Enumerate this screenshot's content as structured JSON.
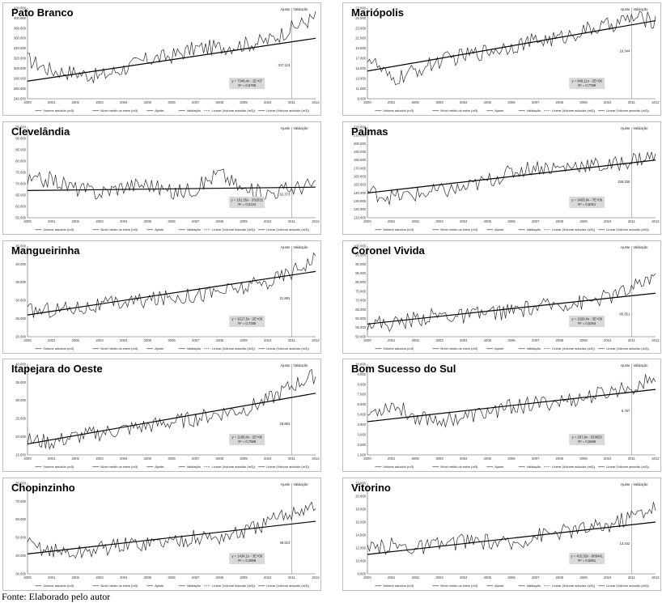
{
  "source_note": "Fonte: Elaborado pelo autor",
  "legend": {
    "volume": "Volume aduzido (m3)",
    "nivel": "Nível médio do estre (m3)",
    "ajuste": "Ajuste",
    "validacao": "Validação",
    "linear_ajuste": "Linear (Volume aduzido (m3))",
    "linear_validacao": "Linear (Volume aduzido (m3))"
  },
  "split_labels": {
    "ajuste": "Ajuste",
    "validacao": "Validação"
  },
  "colors": {
    "series": "#2b2b2b",
    "trend": "#000000",
    "split": "#8c8c8c",
    "box": "#d9d9d9"
  },
  "chart_data": [
    {
      "type": "line",
      "title": "Pato Branco",
      "x": [
        "2000",
        "2001",
        "2002",
        "2003",
        "2004",
        "2005",
        "2006",
        "2007",
        "2008",
        "2009",
        "2010",
        "2011",
        "2012"
      ],
      "yticks": [
        "240.000",
        "260.000",
        "280.000",
        "300.000",
        "320.000",
        "340.000",
        "360.000",
        "380.000",
        "400.000",
        "420.000"
      ],
      "ylim": [
        240000,
        420000
      ],
      "trend_start": 275000,
      "trend_end": 360000,
      "series": [
        {
          "name": "Volume aduzido (m3)",
          "values": [
            318000,
            296000,
            292000,
            284000,
            300000,
            318000,
            325000,
            340000,
            342000,
            348000,
            355000,
            380000,
            402000
          ]
        }
      ],
      "equation": "y = 7340,4x - 1E+07",
      "r2": "R² = 0,5709",
      "split_value": "317.113"
    },
    {
      "type": "line",
      "title": "Mariópolis",
      "x": [
        "2000",
        "2001",
        "2002",
        "2003",
        "2004",
        "2005",
        "2006",
        "2007",
        "2008",
        "2009",
        "2010",
        "2011",
        "2012"
      ],
      "yticks": [
        "9.000",
        "11.000",
        "13.000",
        "15.000",
        "17.000",
        "19.000",
        "21.000",
        "23.000",
        "25.000",
        "27.000"
      ],
      "ylim": [
        9000,
        27000
      ],
      "trend_start": 14500,
      "trend_end": 24500,
      "series": [
        {
          "name": "Volume aduzido (m3)",
          "values": [
            17500,
            12500,
            14500,
            16500,
            17500,
            18500,
            19500,
            20500,
            21000,
            22500,
            23500,
            25000,
            24500
          ]
        }
      ],
      "equation": "y = 846,11x - 2E+06",
      "r2": "R² = 0,7789",
      "split_value": "19.344"
    },
    {
      "type": "line",
      "title": "Clevelândia",
      "x": [
        "2000",
        "2001",
        "2002",
        "2003",
        "2004",
        "2005",
        "2006",
        "2007",
        "2008",
        "2009",
        "2010",
        "2011",
        "2012"
      ],
      "yticks": [
        "55.000",
        "60.000",
        "65.000",
        "70.000",
        "75.000",
        "80.000",
        "85.000",
        "90.000",
        "95.000"
      ],
      "ylim": [
        55000,
        95000
      ],
      "trend_start": 67000,
      "trend_end": 68500,
      "series": [
        {
          "name": "Volume aduzido (m3)",
          "values": [
            71000,
            72000,
            68000,
            66000,
            69000,
            70000,
            66000,
            68000,
            75000,
            67000,
            66000,
            68000,
            70000
          ]
        }
      ],
      "equation": "y = 181,35x - 332532",
      "r2": "R² = 0,0134",
      "split_value": "62.373"
    },
    {
      "type": "line",
      "title": "Palmas",
      "x": [
        "2000",
        "2001",
        "2002",
        "2003",
        "2004",
        "2005",
        "2006",
        "2007",
        "2008",
        "2009",
        "2010",
        "2011",
        "2012"
      ],
      "yticks": [
        "110.000",
        "120.000",
        "130.000",
        "140.000",
        "150.000",
        "160.000",
        "170.000",
        "180.000",
        "190.000",
        "200.000",
        "210.000",
        "220.000"
      ],
      "ylim": [
        110000,
        220000
      ],
      "trend_start": 140000,
      "trend_end": 180000,
      "series": [
        {
          "name": "Volume aduzido (m3)",
          "values": [
            142000,
            135000,
            138000,
            142000,
            145000,
            155000,
            165000,
            172000,
            170000,
            175000,
            172000,
            180000,
            185000
          ]
        }
      ],
      "equation": "y = 3403,9x - 7E+06",
      "r2": "R² = 0,5051",
      "split_value": "159.335"
    },
    {
      "type": "line",
      "title": "Mangueirinha",
      "x": [
        "2000",
        "2001",
        "2002",
        "2003",
        "2004",
        "2005",
        "2006",
        "2007",
        "2008",
        "2009",
        "2010",
        "2011",
        "2012"
      ],
      "yticks": [
        "20.000",
        "25.000",
        "30.000",
        "35.000",
        "40.000",
        "45.000"
      ],
      "ylim": [
        20000,
        45000
      ],
      "trend_start": 26000,
      "trend_end": 38000,
      "series": [
        {
          "name": "Volume aduzido (m3)",
          "values": [
            27000,
            27500,
            28000,
            28500,
            29500,
            30000,
            31000,
            31500,
            32500,
            33500,
            35000,
            38000,
            42000
          ]
        }
      ],
      "equation": "y = 1017,5x - 2E+06",
      "r2": "R² = 0,7285",
      "split_value": "31.891"
    },
    {
      "type": "line",
      "title": "Coronel Vivida",
      "x": [
        "2000",
        "2001",
        "2002",
        "2003",
        "2004",
        "2005",
        "2006",
        "2007",
        "2008",
        "2009",
        "2010",
        "2011",
        "2012"
      ],
      "yticks": [
        "50.000",
        "55.000",
        "60.000",
        "65.000",
        "70.000",
        "75.000",
        "80.000",
        "85.000",
        "90.000",
        "95.000",
        "100.000"
      ],
      "ylim": [
        50000,
        100000
      ],
      "trend_start": 57000,
      "trend_end": 74000,
      "series": [
        {
          "name": "Volume aduzido (m3)",
          "values": [
            58000,
            57000,
            60000,
            62000,
            61000,
            63000,
            64000,
            66000,
            68000,
            69000,
            72000,
            76000,
            85000
          ]
        }
      ],
      "equation": "y = 1320,4x - 3E+06",
      "r2": "R² = 0,5264",
      "split_value": "65.651"
    },
    {
      "type": "line",
      "title": "Itapejara do Oeste",
      "x": [
        "2000",
        "2001",
        "2002",
        "2003",
        "2004",
        "2005",
        "2006",
        "2007",
        "2008",
        "2009",
        "2010",
        "2011",
        "2012"
      ],
      "yticks": [
        "15.000",
        "20.000",
        "25.000",
        "30.000",
        "35.000",
        "40.000"
      ],
      "ylim": [
        15000,
        40000
      ],
      "trend_start": 18000,
      "trend_end": 32000,
      "series": [
        {
          "name": "Volume aduzido (m3)",
          "values": [
            19000,
            18500,
            20000,
            21000,
            22000,
            23000,
            24000,
            25000,
            26500,
            27500,
            30000,
            34000,
            37000
          ]
        }
      ],
      "equation": "y = 1190,8x - 2E+06",
      "r2": "R² = 0,7589",
      "split_value": "25.863"
    },
    {
      "type": "line",
      "title": "Bom Sucesso do Sul",
      "x": [
        "2000",
        "2001",
        "2002",
        "2003",
        "2004",
        "2005",
        "2006",
        "2007",
        "2008",
        "2009",
        "2010",
        "2011",
        "2012"
      ],
      "yticks": [
        "1.000",
        "2.000",
        "3.000",
        "4.000",
        "5.000",
        "6.000",
        "7.000",
        "8.000",
        "9.000",
        "10.000"
      ],
      "ylim": [
        1000,
        10000
      ],
      "trend_start": 4300,
      "trend_end": 7500,
      "series": [
        {
          "name": "Volume aduzido (m3)",
          "values": [
            5000,
            6000,
            4800,
            4500,
            4700,
            5200,
            5800,
            6000,
            6300,
            6600,
            7200,
            7800,
            8500
          ]
        }
      ],
      "equation": "y = 267,6x - 533623",
      "r2": "R² = 0,5568",
      "split_value": "5.767"
    },
    {
      "type": "line",
      "title": "Chopinzinho",
      "x": [
        "2000",
        "2001",
        "2002",
        "2003",
        "2004",
        "2005",
        "2006",
        "2007",
        "2008",
        "2009",
        "2010",
        "2011",
        "2012"
      ],
      "yticks": [
        "30.000",
        "40.000",
        "50.000",
        "60.000",
        "70.000",
        "80.000"
      ],
      "ylim": [
        30000,
        80000
      ],
      "trend_start": 41000,
      "trend_end": 59000,
      "series": [
        {
          "name": "Volume aduzido (m3)",
          "values": [
            46000,
            43000,
            41000,
            44000,
            46000,
            47000,
            48000,
            50000,
            50000,
            53000,
            58000,
            64000,
            68000
          ]
        }
      ],
      "equation": "y = 1434,1x - 3E+06",
      "r2": "R² = 0,4898",
      "split_value": "48.913"
    },
    {
      "type": "line",
      "title": "Vitorino",
      "x": [
        "2000",
        "2001",
        "2002",
        "2003",
        "2004",
        "2005",
        "2006",
        "2007",
        "2008",
        "2009",
        "2010",
        "2011",
        "2012"
      ],
      "yticks": [
        "8.000",
        "10.000",
        "12.000",
        "14.000",
        "16.000",
        "18.000",
        "20.000",
        "22.000"
      ],
      "ylim": [
        8000,
        22000
      ],
      "trend_start": 11000,
      "trend_end": 16000,
      "series": [
        {
          "name": "Volume aduzido (m3)",
          "values": [
            11500,
            12500,
            12000,
            12500,
            13000,
            13000,
            12500,
            14000,
            14500,
            15000,
            15500,
            17000,
            18500
          ]
        }
      ],
      "equation": "y = 410,32x - 809441",
      "r2": "R² = 0,5661",
      "split_value": "13.442"
    }
  ]
}
